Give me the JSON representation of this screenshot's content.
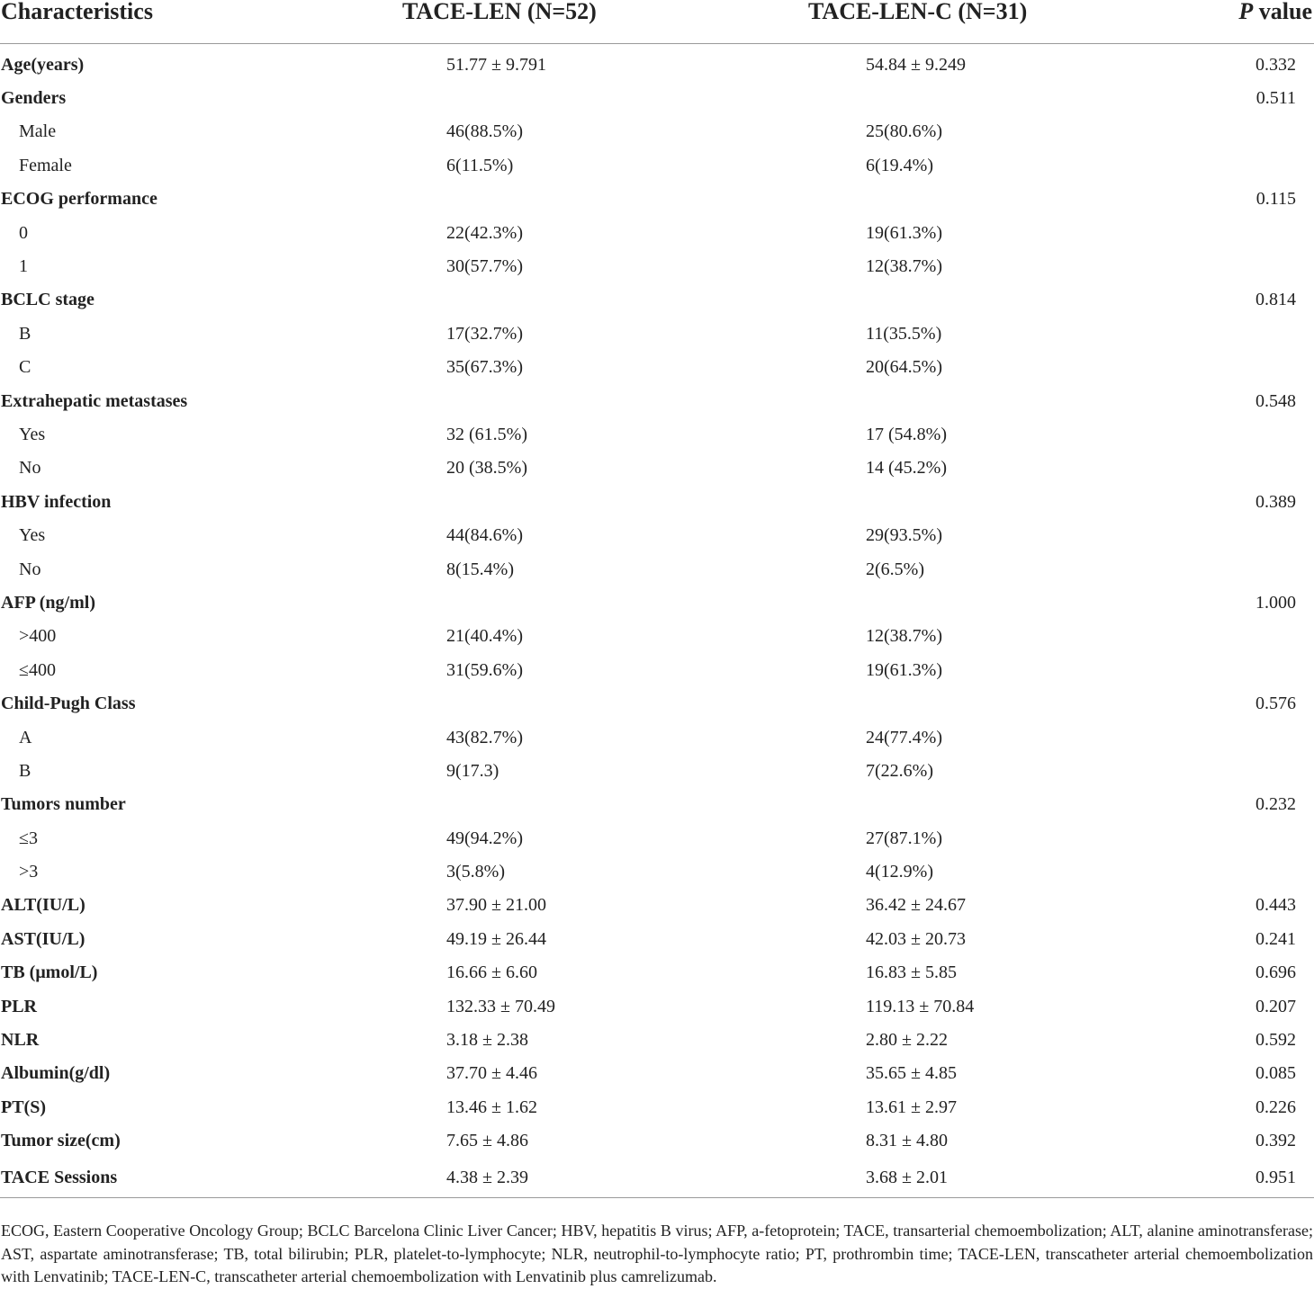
{
  "table": {
    "headers": {
      "characteristics": "Characteristics",
      "group1": "TACE-LEN (N=52)",
      "group2": "TACE-LEN-C (N=31)",
      "p_italic": "P",
      "p_rest": " value"
    },
    "rows": [
      {
        "label": "Age(years)",
        "kind": "main",
        "v1": "51.77 ± 9.791",
        "v2": "54.84 ± 9.249",
        "p": "0.332"
      },
      {
        "label": "Genders",
        "kind": "main",
        "v1": "",
        "v2": "",
        "p": "0.511"
      },
      {
        "label": "Male",
        "kind": "sub",
        "v1": "46(88.5%)",
        "v2": "25(80.6%)",
        "p": ""
      },
      {
        "label": "Female",
        "kind": "sub",
        "v1": "6(11.5%)",
        "v2": "6(19.4%)",
        "p": ""
      },
      {
        "label": "ECOG performance",
        "kind": "main",
        "v1": "",
        "v2": "",
        "p": "0.115"
      },
      {
        "label": "0",
        "kind": "sub",
        "v1": "22(42.3%)",
        "v2": "19(61.3%)",
        "p": ""
      },
      {
        "label": "1",
        "kind": "sub",
        "v1": "30(57.7%)",
        "v2": "12(38.7%)",
        "p": ""
      },
      {
        "label": "BCLC stage",
        "kind": "main",
        "v1": "",
        "v2": "",
        "p": "0.814"
      },
      {
        "label": "B",
        "kind": "sub",
        "v1": "17(32.7%)",
        "v2": "11(35.5%)",
        "p": ""
      },
      {
        "label": "C",
        "kind": "sub",
        "v1": "35(67.3%)",
        "v2": "20(64.5%)",
        "p": ""
      },
      {
        "label": "Extrahepatic metastases",
        "kind": "main",
        "v1": "",
        "v2": "",
        "p": "0.548"
      },
      {
        "label": "Yes",
        "kind": "sub",
        "v1": "32 (61.5%)",
        "v2": "17 (54.8%)",
        "p": ""
      },
      {
        "label": "No",
        "kind": "sub",
        "v1": "20 (38.5%)",
        "v2": "14 (45.2%)",
        "p": ""
      },
      {
        "label": "HBV infection",
        "kind": "main",
        "v1": "",
        "v2": "",
        "p": "0.389"
      },
      {
        "label": "Yes",
        "kind": "sub",
        "v1": "44(84.6%)",
        "v2": "29(93.5%)",
        "p": ""
      },
      {
        "label": "No",
        "kind": "sub",
        "v1": "8(15.4%)",
        "v2": "2(6.5%)",
        "p": ""
      },
      {
        "label": "AFP (ng/ml)",
        "kind": "main",
        "v1": "",
        "v2": "",
        "p": "1.000"
      },
      {
        "label": ">400",
        "kind": "sub",
        "v1": "21(40.4%)",
        "v2": "12(38.7%)",
        "p": ""
      },
      {
        "label": "≤400",
        "kind": "sub",
        "v1": "31(59.6%)",
        "v2": "19(61.3%)",
        "p": ""
      },
      {
        "label": "Child-Pugh Class",
        "kind": "main",
        "v1": "",
        "v2": "",
        "p": "0.576"
      },
      {
        "label": "A",
        "kind": "sub",
        "v1": "43(82.7%)",
        "v2": "24(77.4%)",
        "p": ""
      },
      {
        "label": "B",
        "kind": "sub",
        "v1": "9(17.3)",
        "v2": "7(22.6%)",
        "p": ""
      },
      {
        "label": "Tumors number",
        "kind": "main",
        "v1": "",
        "v2": "",
        "p": "0.232"
      },
      {
        "label": "≤3",
        "kind": "sub",
        "v1": "49(94.2%)",
        "v2": "27(87.1%)",
        "p": ""
      },
      {
        "label": ">3",
        "kind": "sub",
        "v1": "3(5.8%)",
        "v2": "4(12.9%)",
        "p": ""
      },
      {
        "label": "ALT(IU/L)",
        "kind": "main",
        "v1": "37.90 ± 21.00",
        "v2": "36.42 ± 24.67",
        "p": "0.443"
      },
      {
        "label": "AST(IU/L)",
        "kind": "main",
        "v1": "49.19 ± 26.44",
        "v2": "42.03 ± 20.73",
        "p": "0.241"
      },
      {
        "label": "TB (μmol/L)",
        "kind": "main",
        "v1": "16.66 ± 6.60",
        "v2": "16.83 ± 5.85",
        "p": "0.696"
      },
      {
        "label": "PLR",
        "kind": "main",
        "v1": "132.33 ± 70.49",
        "v2": "119.13 ± 70.84",
        "p": "0.207"
      },
      {
        "label": "NLR",
        "kind": "main",
        "v1": "3.18 ± 2.38",
        "v2": "2.80 ± 2.22",
        "p": "0.592"
      },
      {
        "label": "Albumin(g/dl)",
        "kind": "main",
        "v1": "37.70 ± 4.46",
        "v2": "35.65 ± 4.85",
        "p": "0.085"
      },
      {
        "label": "PT(S)",
        "kind": "main",
        "v1": "13.46 ± 1.62",
        "v2": "13.61 ± 2.97",
        "p": "0.226"
      },
      {
        "label": "Tumor size(cm)",
        "kind": "main",
        "v1": "7.65 ± 4.86",
        "v2": "8.31 ± 4.80",
        "p": "0.392"
      },
      {
        "label": "TACE Sessions",
        "kind": "main",
        "v1": "4.38 ± 2.39",
        "v2": "3.68 ± 2.01",
        "p": "0.951"
      }
    ]
  },
  "footnote": "ECOG, Eastern Cooperative Oncology Group; BCLC Barcelona Clinic Liver Cancer; HBV, hepatitis B virus; AFP, a-fetoprotein; TACE, transarterial chemoembolization; ALT, alanine aminotransferase; AST, aspartate aminotransferase; TB, total bilirubin; PLR, platelet-to-lymphocyte; NLR, neutrophil-to-lymphocyte ratio; PT, prothrombin time; TACE-LEN, transcatheter arterial chemoembolization with Lenvatinib; TACE-LEN-C, transcatheter arterial chemoembolization with Lenvatinib plus camrelizumab."
}
